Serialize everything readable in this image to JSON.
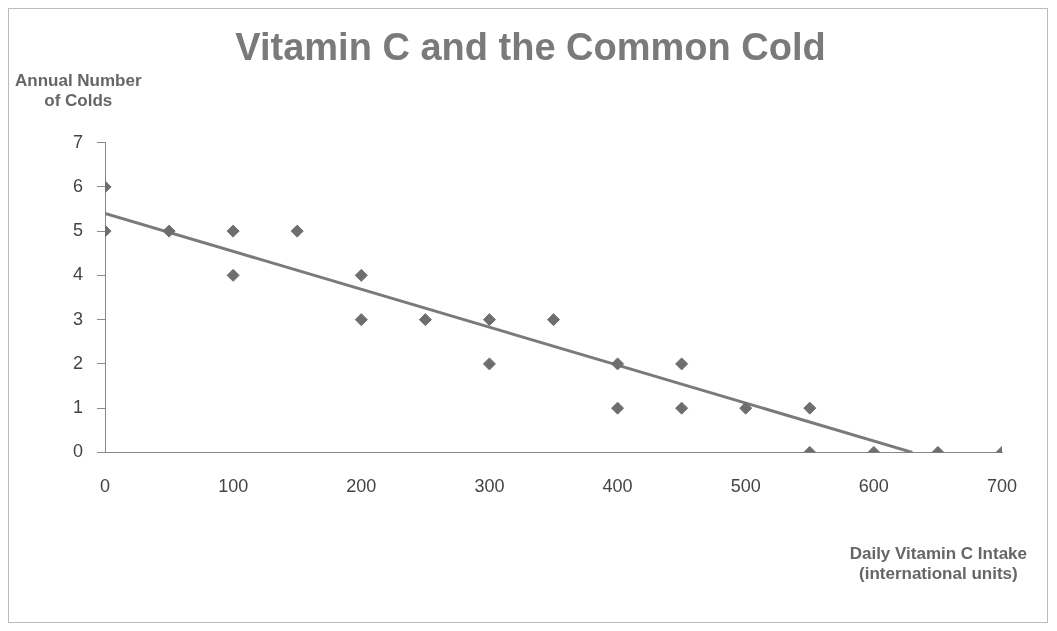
{
  "chart_data": {
    "type": "scatter",
    "title": "Vitamin C and the Common Cold",
    "xlabel": "Daily Vitamin C Intake\n(international units)",
    "ylabel": "Annual Number\nof Colds",
    "xlim": [
      0,
      700
    ],
    "xticks": [
      0,
      100,
      200,
      300,
      400,
      500,
      600,
      700
    ],
    "ylim": [
      0,
      7
    ],
    "yticks": [
      0,
      1,
      2,
      3,
      4,
      5,
      6,
      7
    ],
    "grid": false,
    "legend": false,
    "marker": "diamond",
    "series": [
      {
        "type": "scatter",
        "color": "#6e6e6e",
        "x": [
          0,
          0,
          50,
          100,
          100,
          150,
          200,
          200,
          250,
          300,
          300,
          350,
          400,
          400,
          450,
          450,
          500,
          550,
          550,
          600,
          650,
          700
        ],
        "values": [
          6,
          5,
          5,
          5,
          4,
          5,
          4,
          3,
          3,
          3,
          2,
          3,
          2,
          1,
          2,
          1,
          1,
          1,
          0,
          0,
          0,
          0
        ]
      },
      {
        "type": "line",
        "color": "#7a7a7a",
        "line_style": "solid",
        "marker": "none",
        "x": [
          0,
          630
        ],
        "values": [
          5.4,
          0
        ]
      }
    ]
  }
}
